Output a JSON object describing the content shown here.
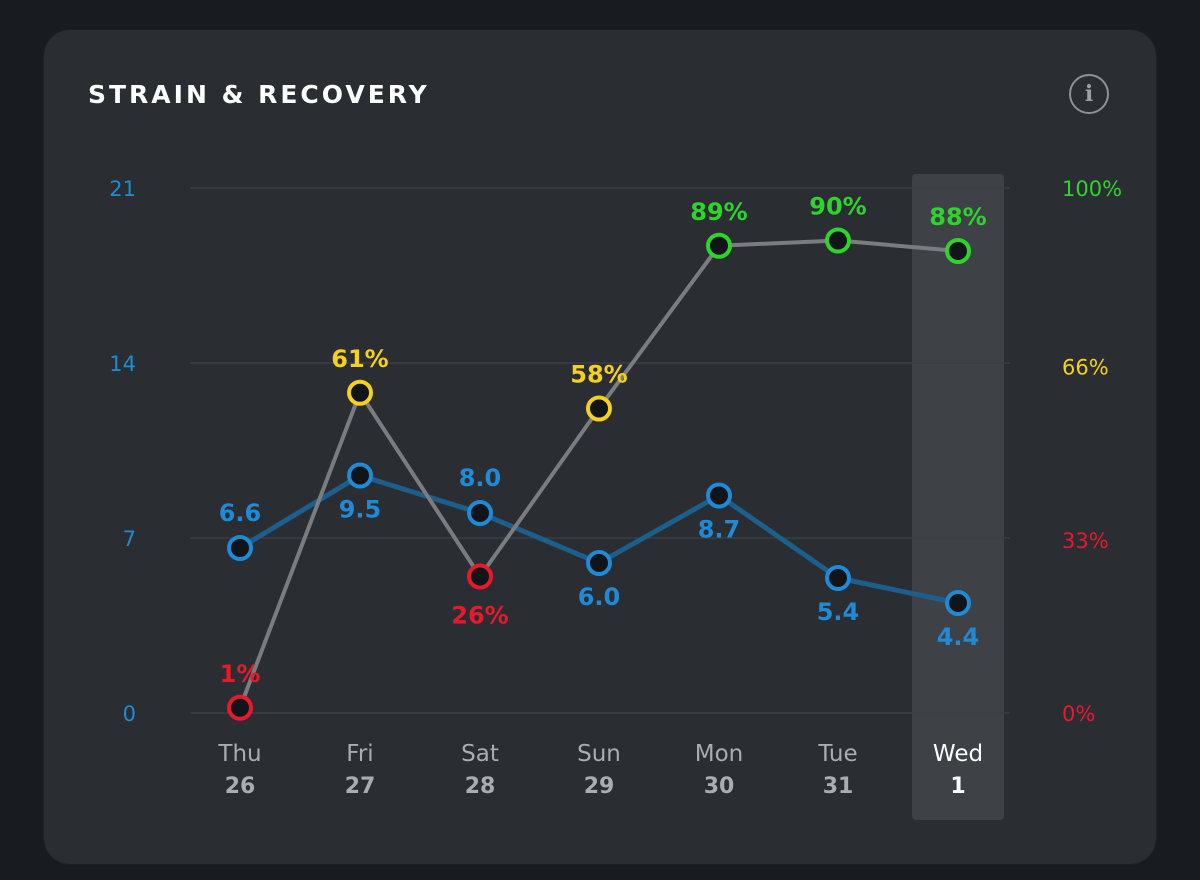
{
  "header": {
    "title": "STRAIN & RECOVERY",
    "info_icon": "info-icon",
    "info_glyph": "i"
  },
  "colors": {
    "background": "#181c21",
    "card": "#2a2d32",
    "strain": "#1f8ad6",
    "strain_line": "#1d5f8c",
    "recovery_line": "#7a7c80",
    "recovery_high": "#2cd42c",
    "recovery_mid": "#f5d020",
    "recovery_low": "#e8192c",
    "grid": "#3b3e43",
    "day_text": "#a9acb0",
    "selected_day_text": "#ffffff",
    "selected_column": "#3e4146"
  },
  "chart_data": {
    "type": "line",
    "categories": [
      {
        "day": "Thu",
        "date": "26"
      },
      {
        "day": "Fri",
        "date": "27"
      },
      {
        "day": "Sat",
        "date": "28"
      },
      {
        "day": "Sun",
        "date": "29"
      },
      {
        "day": "Mon",
        "date": "30"
      },
      {
        "day": "Tue",
        "date": "31"
      },
      {
        "day": "Wed",
        "date": "1"
      }
    ],
    "selected_index": 6,
    "left_axis": {
      "ylim": [
        0,
        21
      ],
      "ticks": [
        "0",
        "7",
        "14",
        "21"
      ]
    },
    "right_axis": {
      "ylim": [
        0,
        100
      ],
      "ticks": [
        {
          "value": 0,
          "label": "0%",
          "level": "low"
        },
        {
          "value": 33,
          "label": "33%",
          "level": "low"
        },
        {
          "value": 66,
          "label": "66%",
          "level": "mid"
        },
        {
          "value": 100,
          "label": "100%",
          "level": "high"
        }
      ]
    },
    "grid": true,
    "series": [
      {
        "key": "strain",
        "axis": "left",
        "values": [
          6.6,
          9.5,
          8.0,
          6.0,
          8.7,
          5.4,
          4.4
        ],
        "labels": [
          "6.6",
          "9.5",
          "8.0",
          "6.0",
          "8.7",
          "5.4",
          "4.4"
        ],
        "label_position": [
          "above",
          "below",
          "above",
          "below",
          "below",
          "below",
          "below"
        ]
      },
      {
        "key": "recovery",
        "axis": "right",
        "values": [
          1,
          61,
          26,
          58,
          89,
          90,
          88
        ],
        "labels": [
          "1%",
          "61%",
          "26%",
          "58%",
          "89%",
          "90%",
          "88%"
        ],
        "levels": [
          "low",
          "mid",
          "low",
          "mid",
          "high",
          "high",
          "high"
        ],
        "label_position": [
          "above",
          "above",
          "below",
          "above",
          "above",
          "above",
          "above"
        ]
      }
    ]
  }
}
